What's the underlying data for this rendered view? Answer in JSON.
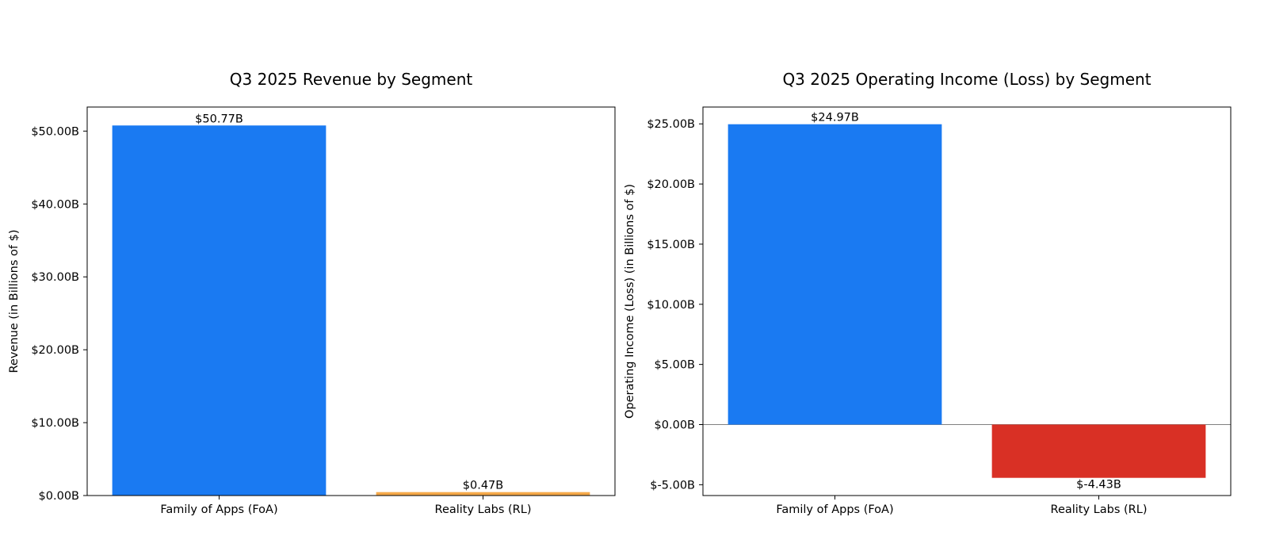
{
  "chart_data": [
    {
      "type": "bar",
      "title": "Q3 2025 Revenue by Segment",
      "xlabel": "",
      "ylabel": "Revenue (in Billions of $)",
      "categories": [
        "Family of Apps (FoA)",
        "Reality Labs (RL)"
      ],
      "values": [
        50.77,
        0.47
      ],
      "data_labels": [
        "$50.77B",
        "$0.47B"
      ],
      "colors": [
        "#1a7af2",
        "#f5a94a"
      ],
      "ylim": [
        0,
        53.3
      ],
      "yticks": [
        0,
        10,
        20,
        30,
        40,
        50
      ],
      "ytick_labels": [
        "$0.00B",
        "$10.00B",
        "$20.00B",
        "$30.00B",
        "$40.00B",
        "$50.00B"
      ],
      "grid": false,
      "legend": false,
      "zero_line": false
    },
    {
      "type": "bar",
      "title": "Q3 2025 Operating Income (Loss) by Segment",
      "xlabel": "",
      "ylabel": "Operating Income (Loss) (in Billions of $)",
      "categories": [
        "Family of Apps (FoA)",
        "Reality Labs (RL)"
      ],
      "values": [
        24.97,
        -4.43
      ],
      "data_labels": [
        "$24.97B",
        "$-4.43B"
      ],
      "colors": [
        "#1a7af2",
        "#d93025"
      ],
      "ylim": [
        -5.9,
        26.4
      ],
      "yticks": [
        -5,
        0,
        5,
        10,
        15,
        20,
        25
      ],
      "ytick_labels": [
        "$-5.00B",
        "$0.00B",
        "$5.00B",
        "$10.00B",
        "$15.00B",
        "$20.00B",
        "$25.00B"
      ],
      "grid": false,
      "legend": false,
      "zero_line": true
    }
  ]
}
